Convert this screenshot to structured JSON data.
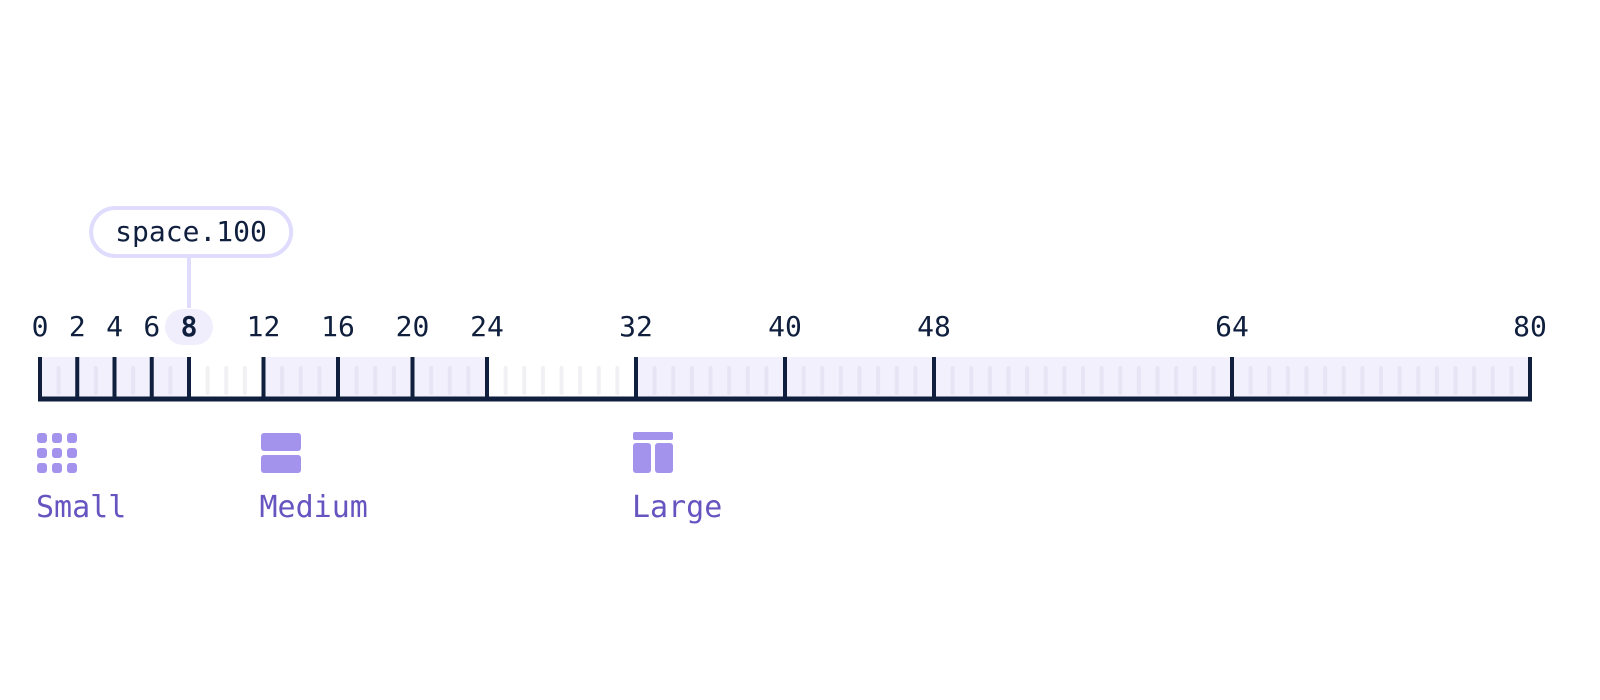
{
  "scale": {
    "max": 80,
    "steps": [
      0,
      2,
      4,
      6,
      8,
      12,
      16,
      20,
      24,
      32,
      40,
      48,
      64,
      80
    ],
    "selected_value": 8,
    "selected_token": "space.100",
    "shaded_ranges": [
      [
        0,
        8
      ],
      [
        12,
        24
      ],
      [
        32,
        80
      ]
    ],
    "minor_tick_interval": 1
  },
  "categories": [
    {
      "label": "Small",
      "icon": "dot-grid-icon",
      "start": 0
    },
    {
      "label": "Medium",
      "icon": "stacked-rows-icon",
      "start": 12
    },
    {
      "label": "Large",
      "icon": "layout-sidebar-icon",
      "start": 32
    }
  ],
  "colors": {
    "axis": "#0f1f3d",
    "shade": "#f2f0fc",
    "minor_tick": "#e7e4f6",
    "minor_tick_unshaded": "#f1f1f4",
    "accent": "#a393ec",
    "accent_text": "#6655c0",
    "pill_border": "#e0dcfd",
    "selected_bg": "#f0eefc"
  }
}
